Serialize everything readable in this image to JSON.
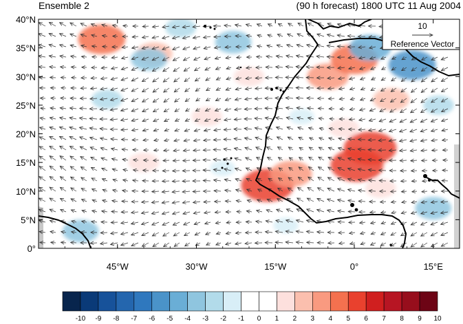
{
  "header": {
    "left_title": "Ensemble 2",
    "right_title": "(90 h forecast) 1800 UTC 11 Aug 2004"
  },
  "map": {
    "lon_range": [
      -60,
      20
    ],
    "lat_range": [
      0,
      40
    ],
    "lat_ticks": [
      {
        "value": 40,
        "label": "40°N"
      },
      {
        "value": 35,
        "label": "35°N"
      },
      {
        "value": 30,
        "label": "30°N"
      },
      {
        "value": 25,
        "label": "25°N"
      },
      {
        "value": 20,
        "label": "20°N"
      },
      {
        "value": 15,
        "label": "15°N"
      },
      {
        "value": 10,
        "label": "10°N"
      },
      {
        "value": 5,
        "label": "5°N"
      },
      {
        "value": 0,
        "label": "0°"
      }
    ],
    "lon_ticks": [
      {
        "value": -45,
        "label": "45°W"
      },
      {
        "value": -30,
        "label": "30°W"
      },
      {
        "value": -15,
        "label": "15°W"
      },
      {
        "value": 0,
        "label": "0°"
      },
      {
        "value": 15,
        "label": "15°E"
      }
    ],
    "reference_vector": {
      "value": "10",
      "label": "Reference Vector"
    },
    "anomaly_features": [
      {
        "lon": -16.5,
        "lat": 11,
        "value": 6
      },
      {
        "lon": -12,
        "lat": 13,
        "value": 4
      },
      {
        "lon": -5,
        "lat": 30,
        "value": 4
      },
      {
        "lon": 0,
        "lat": 33,
        "value": 5
      },
      {
        "lon": 3,
        "lat": 17.5,
        "value": 6
      },
      {
        "lon": 0.5,
        "lat": 14.5,
        "value": 6
      },
      {
        "lon": 7,
        "lat": 26,
        "value": 3
      },
      {
        "lon": -48,
        "lat": 36.5,
        "value": 5
      },
      {
        "lon": -38,
        "lat": 34,
        "value": 3
      },
      {
        "lon": -20,
        "lat": 30,
        "value": 2
      },
      {
        "lon": -40,
        "lat": 15,
        "value": 2
      },
      {
        "lon": -28,
        "lat": 23,
        "value": 2
      },
      {
        "lon": -2,
        "lat": 21,
        "value": 2
      },
      {
        "lon": 5,
        "lat": 10.5,
        "value": 2
      },
      {
        "lon": 11,
        "lat": 32,
        "value": -5
      },
      {
        "lon": 3,
        "lat": 35,
        "value": -4
      },
      {
        "lon": -23,
        "lat": 36,
        "value": -3
      },
      {
        "lon": -39,
        "lat": 33,
        "value": -3
      },
      {
        "lon": 15,
        "lat": 7,
        "value": -3
      },
      {
        "lon": 16,
        "lat": 25,
        "value": -2
      },
      {
        "lon": -52,
        "lat": 3,
        "value": -3
      },
      {
        "lon": -25,
        "lat": 14,
        "value": -1
      },
      {
        "lon": -47,
        "lat": 26,
        "value": -2
      },
      {
        "lon": -33,
        "lat": 38.5,
        "value": -2
      },
      {
        "lon": -10,
        "lat": 23,
        "value": -1
      },
      {
        "lon": -13,
        "lat": 4,
        "value": -1
      }
    ]
  },
  "colorbar": {
    "labels": [
      "-10",
      "-9",
      "-8",
      "-7",
      "-6",
      "-5",
      "-4",
      "-3",
      "-2",
      "-1",
      "0",
      "1",
      "2",
      "3",
      "4",
      "5",
      "6",
      "7",
      "8",
      "9",
      "10"
    ],
    "colors": [
      "#08254d",
      "#0a3a78",
      "#17529a",
      "#2466ae",
      "#2f78be",
      "#4a93c9",
      "#6aaed6",
      "#8fc5df",
      "#b2dbea",
      "#d8eef7",
      "#ffffff",
      "#ffffff",
      "#fde0dd",
      "#fbbfae",
      "#f99a80",
      "#f4714f",
      "#e9412e",
      "#d01f1f",
      "#b71523",
      "#970e1c",
      "#6d0415"
    ]
  }
}
